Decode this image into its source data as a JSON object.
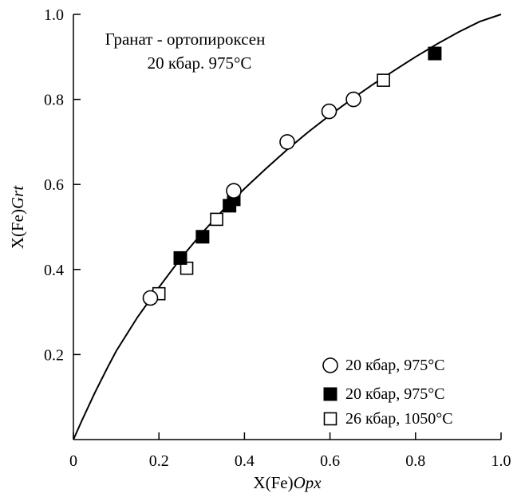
{
  "chart_data": {
    "type": "scatter",
    "title": [
      "Гранат - ортопироксен",
      "20 кбар. 975°C"
    ],
    "xlabel": {
      "prefix": "X(Fe)",
      "italic": "Opx"
    },
    "ylabel": {
      "prefix": "X(Fe)",
      "italic": "Grt"
    },
    "xlim": [
      0,
      1.0
    ],
    "ylim": [
      0,
      1.0
    ],
    "xticks": [
      {
        "value": 0,
        "label": "0"
      },
      {
        "value": 0.2,
        "label": "0.2"
      },
      {
        "value": 0.4,
        "label": "0.4"
      },
      {
        "value": 0.6,
        "label": "0.6"
      },
      {
        "value": 0.8,
        "label": "0.8"
      },
      {
        "value": 1.0,
        "label": "1.0"
      }
    ],
    "yticks": [
      {
        "value": 0.2,
        "label": "0.2"
      },
      {
        "value": 0.4,
        "label": "0.4"
      },
      {
        "value": 0.6,
        "label": "0.6"
      },
      {
        "value": 0.8,
        "label": "0.8"
      },
      {
        "value": 1.0,
        "label": "1.0"
      }
    ],
    "grid": false,
    "legend_position": "bottom-right",
    "series": [
      {
        "name": "20 кбар, 975°C",
        "marker": "open-circle",
        "points": [
          {
            "x": 0.18,
            "y": 0.333
          },
          {
            "x": 0.375,
            "y": 0.585
          },
          {
            "x": 0.5,
            "y": 0.7
          },
          {
            "x": 0.598,
            "y": 0.772
          },
          {
            "x": 0.655,
            "y": 0.8
          }
        ]
      },
      {
        "name": "20 кбар, 975°C",
        "marker": "filled-square",
        "points": [
          {
            "x": 0.25,
            "y": 0.427
          },
          {
            "x": 0.302,
            "y": 0.477
          },
          {
            "x": 0.365,
            "y": 0.55
          },
          {
            "x": 0.375,
            "y": 0.565
          },
          {
            "x": 0.845,
            "y": 0.908
          }
        ]
      },
      {
        "name": "26 кбар, 1050°C",
        "marker": "open-square",
        "points": [
          {
            "x": 0.2,
            "y": 0.343
          },
          {
            "x": 0.265,
            "y": 0.403
          },
          {
            "x": 0.335,
            "y": 0.518
          },
          {
            "x": 0.725,
            "y": 0.845
          }
        ]
      }
    ],
    "curve": [
      {
        "x": 0.0,
        "y": 0.0
      },
      {
        "x": 0.02,
        "y": 0.045
      },
      {
        "x": 0.05,
        "y": 0.11
      },
      {
        "x": 0.08,
        "y": 0.17
      },
      {
        "x": 0.1,
        "y": 0.208
      },
      {
        "x": 0.15,
        "y": 0.288
      },
      {
        "x": 0.2,
        "y": 0.358
      },
      {
        "x": 0.25,
        "y": 0.425
      },
      {
        "x": 0.3,
        "y": 0.485
      },
      {
        "x": 0.35,
        "y": 0.54
      },
      {
        "x": 0.4,
        "y": 0.59
      },
      {
        "x": 0.45,
        "y": 0.637
      },
      {
        "x": 0.5,
        "y": 0.682
      },
      {
        "x": 0.55,
        "y": 0.724
      },
      {
        "x": 0.6,
        "y": 0.763
      },
      {
        "x": 0.65,
        "y": 0.8
      },
      {
        "x": 0.7,
        "y": 0.835
      },
      {
        "x": 0.75,
        "y": 0.868
      },
      {
        "x": 0.8,
        "y": 0.9
      },
      {
        "x": 0.85,
        "y": 0.93
      },
      {
        "x": 0.9,
        "y": 0.958
      },
      {
        "x": 0.95,
        "y": 0.983
      },
      {
        "x": 1.0,
        "y": 1.0
      }
    ]
  }
}
